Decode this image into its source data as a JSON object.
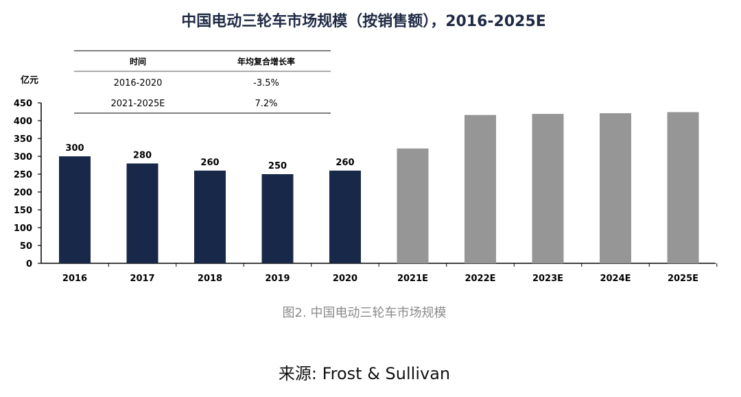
{
  "title": "中国电动三轮车市场规模（按销售额），2016-2025E",
  "caption": "图2. 中国电动三轮车市场规模",
  "source": "来源: Frost & Sullivan",
  "colors": {
    "actual": "#182848",
    "forecast": "#969696",
    "axis": "#000000",
    "rule": "#555555"
  },
  "growth_table": {
    "headers": [
      "时间",
      "年均复合增长率"
    ],
    "rows": [
      [
        "2016-2020",
        "-3.5%"
      ],
      [
        "2021-2025E",
        "7.2%"
      ]
    ]
  },
  "chart_data": {
    "type": "bar",
    "title": "中国电动三轮车市场规模（按销售额），2016-2025E",
    "ylabel": "亿元",
    "xlabel": "",
    "categories": [
      "2016",
      "2017",
      "2018",
      "2019",
      "2020",
      "2021E",
      "2022E",
      "2023E",
      "2024E",
      "2025E"
    ],
    "values": [
      300,
      280,
      260,
      250,
      260,
      322,
      416,
      419,
      421,
      424
    ],
    "data_labels": [
      "300",
      "280",
      "260",
      "250",
      "260",
      null,
      null,
      null,
      null,
      null
    ],
    "series_type": [
      "actual",
      "actual",
      "actual",
      "actual",
      "actual",
      "forecast",
      "forecast",
      "forecast",
      "forecast",
      "forecast"
    ],
    "ylim": [
      0,
      450
    ],
    "yticks": [
      0,
      50,
      100,
      150,
      200,
      250,
      300,
      350,
      400,
      450
    ],
    "grid": false,
    "legend": "none"
  }
}
